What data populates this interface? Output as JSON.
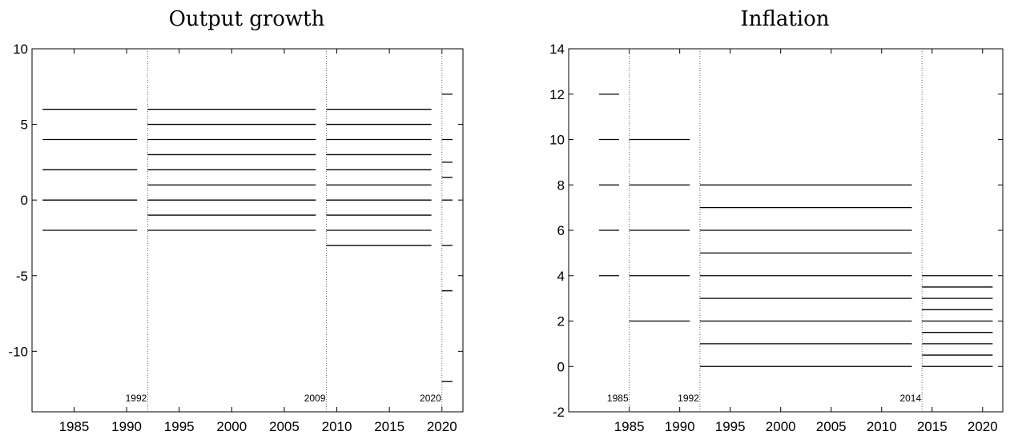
{
  "chart_data": [
    {
      "type": "line",
      "title": "Output growth",
      "xlim": [
        1981,
        2022
      ],
      "ylim": [
        -14,
        10
      ],
      "xticks": [
        1985,
        1990,
        1995,
        2000,
        2005,
        2010,
        2015,
        2020
      ],
      "yticks": [
        -10,
        -5,
        0,
        5,
        10
      ],
      "breaks": [
        1992,
        2009,
        2020
      ],
      "segments": [
        {
          "x": [
            1982,
            1991
          ],
          "levels": [
            -2,
            0,
            2,
            4,
            6
          ]
        },
        {
          "x": [
            1992,
            2008
          ],
          "levels": [
            -2,
            -1,
            0,
            1,
            2,
            3,
            4,
            5,
            6
          ]
        },
        {
          "x": [
            2009,
            2019
          ],
          "levels": [
            -3,
            -2,
            -1,
            0,
            1,
            2,
            3,
            4,
            5,
            6
          ]
        },
        {
          "x": [
            2020,
            2021
          ],
          "levels": [
            -12,
            -6,
            -3,
            0,
            1.5,
            2.5,
            4,
            7
          ]
        }
      ]
    },
    {
      "type": "line",
      "title": "Inflation",
      "xlim": [
        1979,
        2022
      ],
      "ylim": [
        -2,
        14
      ],
      "xticks": [
        1985,
        1990,
        1995,
        2000,
        2005,
        2010,
        2015,
        2020
      ],
      "yticks": [
        -2,
        0,
        2,
        4,
        6,
        8,
        10,
        12,
        14
      ],
      "breaks": [
        1985,
        1992,
        2014
      ],
      "segments": [
        {
          "x": [
            1982,
            1984
          ],
          "levels": [
            4,
            6,
            8,
            10,
            12
          ]
        },
        {
          "x": [
            1985,
            1991
          ],
          "levels": [
            2,
            4,
            6,
            8,
            10
          ]
        },
        {
          "x": [
            1992,
            2013
          ],
          "levels": [
            0,
            1,
            2,
            3,
            4,
            5,
            6,
            7,
            8
          ]
        },
        {
          "x": [
            2014,
            2021
          ],
          "levels": [
            0,
            0.5,
            1,
            1.5,
            2,
            2.5,
            3,
            3.5,
            4
          ]
        }
      ]
    }
  ]
}
